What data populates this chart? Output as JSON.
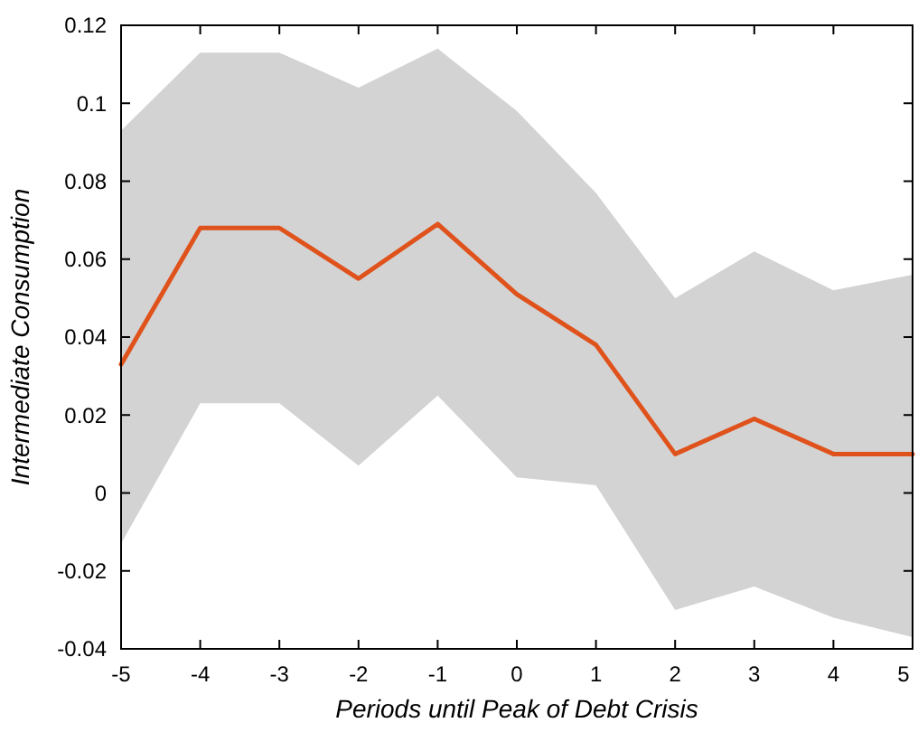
{
  "chart_data": {
    "type": "line",
    "xlabel": "Periods until Peak of Debt Crisis",
    "ylabel": "Intermediate Consumption",
    "x": [
      -5,
      -4,
      -3,
      -2,
      -1,
      0,
      1,
      2,
      3,
      4,
      5
    ],
    "series": [
      {
        "color": "#e0521b",
        "values": [
          0.033,
          0.068,
          0.068,
          0.055,
          0.069,
          0.051,
          0.038,
          0.01,
          0.019,
          0.01,
          0.01
        ],
        "lower": [
          -0.013,
          0.023,
          0.023,
          0.007,
          0.025,
          0.004,
          0.002,
          -0.03,
          -0.024,
          -0.032,
          -0.037
        ],
        "upper": [
          0.093,
          0.113,
          0.113,
          0.104,
          0.114,
          0.098,
          0.077,
          0.05,
          0.062,
          0.052,
          0.056
        ]
      }
    ],
    "xlim": [
      -5,
      5
    ],
    "xticks": [
      -5,
      -4,
      -3,
      -2,
      -1,
      0,
      1,
      2,
      3,
      4,
      5
    ],
    "ylim": [
      -0.04,
      0.12
    ],
    "yticks": [
      -0.04,
      -0.02,
      0,
      0.02,
      0.04,
      0.06,
      0.08,
      0.1,
      0.12
    ],
    "grid": false,
    "marker": "none",
    "line_style": "solid"
  }
}
